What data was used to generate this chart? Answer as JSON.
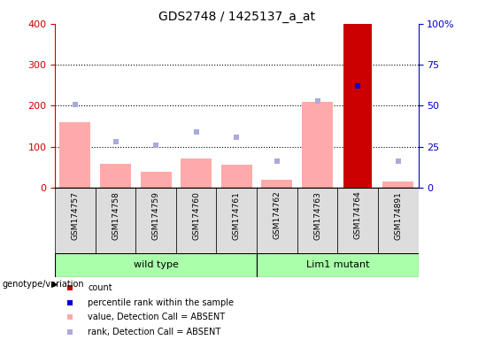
{
  "title": "GDS2748 / 1425137_a_at",
  "samples": [
    "GSM174757",
    "GSM174758",
    "GSM174759",
    "GSM174760",
    "GSM174761",
    "GSM174762",
    "GSM174763",
    "GSM174764",
    "GSM174891"
  ],
  "count_values": [
    0,
    0,
    0,
    0,
    0,
    0,
    0,
    400,
    0
  ],
  "count_absent_values": [
    160,
    58,
    38,
    72,
    55,
    20,
    210,
    0,
    15
  ],
  "rank_present_values": [
    0,
    0,
    0,
    0,
    0,
    0,
    0,
    62,
    0
  ],
  "rank_absent_values": [
    51,
    28,
    26,
    34,
    31,
    16,
    53,
    0,
    16
  ],
  "wild_type_indices": [
    0,
    1,
    2,
    3,
    4
  ],
  "lim1_mutant_indices": [
    5,
    6,
    7,
    8
  ],
  "wild_type_label": "wild type",
  "lim1_mutant_label": "Lim1 mutant",
  "genotype_label": "genotype/variation",
  "ylim_left": [
    0,
    400
  ],
  "ylim_right": [
    0,
    100
  ],
  "yticks_left": [
    0,
    100,
    200,
    300,
    400
  ],
  "yticks_right": [
    0,
    25,
    50,
    75,
    100
  ],
  "color_count": "#cc0000",
  "color_rank": "#0000cc",
  "color_count_absent": "#ffaaaa",
  "color_rank_absent": "#aaaadd",
  "color_genotype_bg": "#aaffaa",
  "color_sample_bg": "#dddddd",
  "legend_items": [
    {
      "color": "#cc0000",
      "label": "count"
    },
    {
      "color": "#0000cc",
      "label": "percentile rank within the sample"
    },
    {
      "color": "#ffaaaa",
      "label": "value, Detection Call = ABSENT"
    },
    {
      "color": "#aaaadd",
      "label": "rank, Detection Call = ABSENT"
    }
  ],
  "bar_width": 0.35,
  "marker_size": 5,
  "dotted_yticks": [
    100,
    200,
    300
  ]
}
